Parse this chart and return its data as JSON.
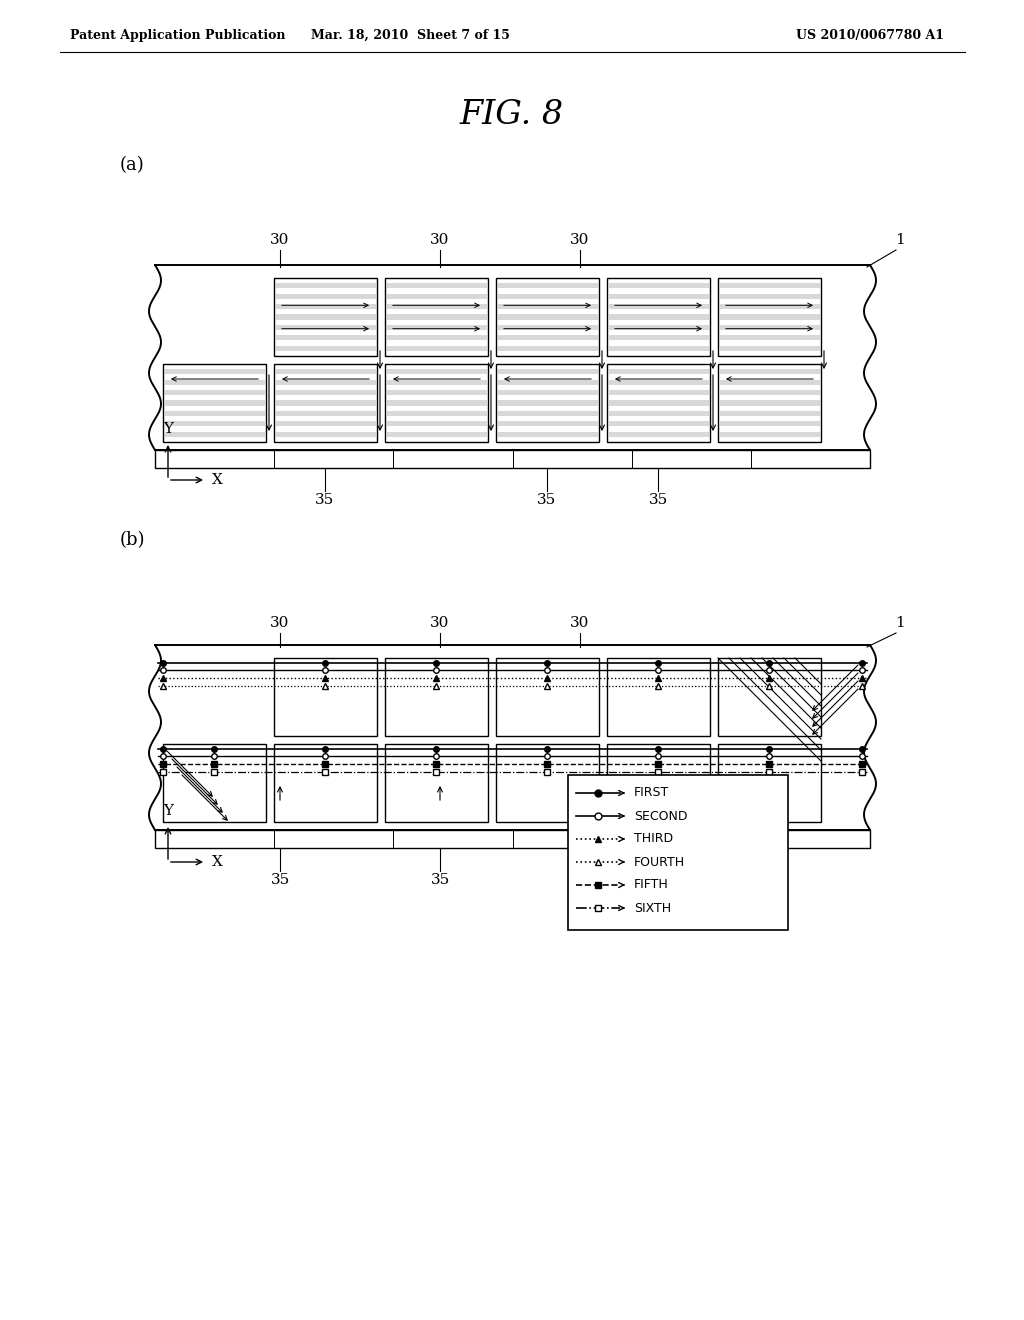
{
  "title": "FIG. 8",
  "header_left": "Patent Application Publication",
  "header_mid": "Mar. 18, 2010  Sheet 7 of 15",
  "header_right": "US 2010/0067780 A1",
  "label_a": "(a)",
  "label_b": "(b)",
  "label_1": "1",
  "label_30": "30",
  "label_35": "35",
  "bg_color": "#ffffff",
  "line_color": "#000000",
  "fig_width": 10.24,
  "fig_height": 13.2,
  "dpi": 100
}
